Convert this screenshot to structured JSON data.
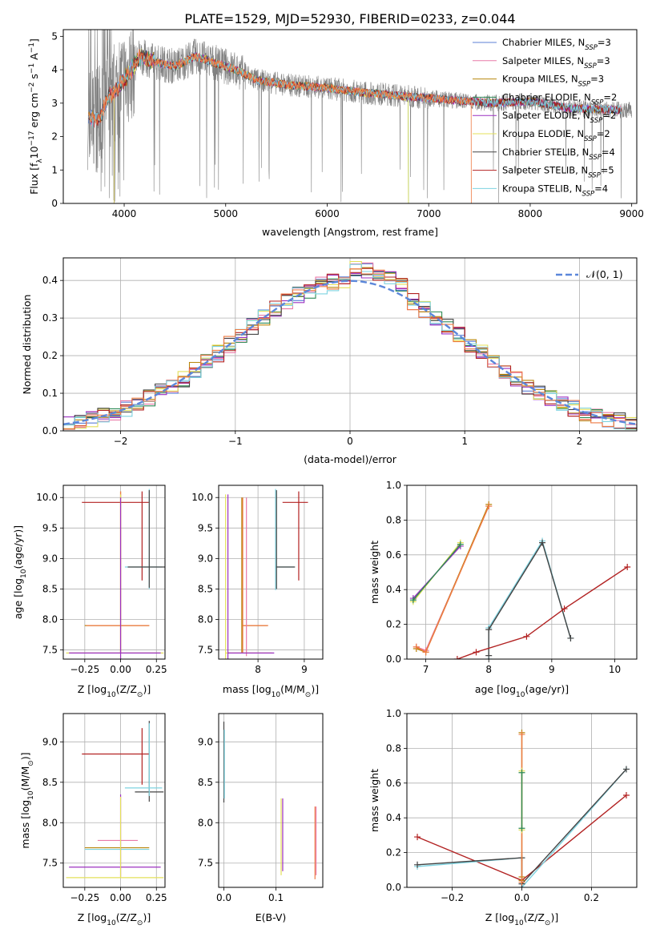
{
  "figure": {
    "title": "PLATE=1529, MJD=52930, FIBERID=0233, z=0.044"
  },
  "series_colors": {
    "Chabrier MILES": "#5b7fd6",
    "Salpeter MILES": "#e87aa8",
    "Kroupa MILES": "#b8860b",
    "Chabrier ELODIE": "#2e8b57",
    "Salpeter ELODIE": "#9b30c0",
    "Kroupa ELODIE": "#e4e05a",
    "Chabrier STELIB": "#444444",
    "Salpeter STELIB": "#b22222",
    "Kroupa STELIB": "#7ed3e0",
    "Kroupa STELIB alt": "#ee7b44",
    "Data": "#808080",
    "Gaussian": "#5b87da"
  },
  "chart_data": [
    {
      "id": "spectrum",
      "type": "line",
      "xlabel": "wavelength [Angstrom, rest frame]",
      "ylabel": "Flux [f",
      "ylabel_parts": [
        "Flux [f",
        "λ",
        "10",
        "−17",
        " erg cm",
        "−2",
        " s",
        "−1",
        " A",
        "−1",
        "]"
      ],
      "xlim": [
        3400,
        9050
      ],
      "ylim": [
        0,
        5.2
      ],
      "xticks": [
        4000,
        5000,
        6000,
        7000,
        8000,
        9000
      ],
      "yticks": [
        0,
        1,
        2,
        3,
        4,
        5
      ],
      "grid": false,
      "legend_position": "upper-right",
      "legend": [
        {
          "name": "Chabrier MILES, N",
          "sub": "SSP",
          "tail": "=3",
          "key": "Chabrier MILES"
        },
        {
          "name": "Salpeter MILES, N",
          "sub": "SSP",
          "tail": "=3",
          "key": "Salpeter MILES"
        },
        {
          "name": "Kroupa MILES, N",
          "sub": "SSP",
          "tail": "=3",
          "key": "Kroupa MILES"
        },
        {
          "name": "Chabrier ELODIE, N",
          "sub": "SSP",
          "tail": "=2",
          "key": "Chabrier ELODIE"
        },
        {
          "name": "Salpeter ELODIE, N",
          "sub": "SSP",
          "tail": "=2",
          "key": "Salpeter ELODIE"
        },
        {
          "name": "Kroupa ELODIE, N",
          "sub": "SSP",
          "tail": "=2",
          "key": "Kroupa ELODIE"
        },
        {
          "name": "Chabrier STELIB, N",
          "sub": "SSP",
          "tail": "=4",
          "key": "Chabrier STELIB"
        },
        {
          "name": "Salpeter STELIB, N",
          "sub": "SSP",
          "tail": "=5",
          "key": "Salpeter STELIB"
        },
        {
          "name": "Kroupa STELIB, N",
          "sub": "SSP",
          "tail": "=4",
          "key": "Kroupa STELIB"
        }
      ],
      "continuum": {
        "x": [
          3650,
          3750,
          3850,
          3950,
          4050,
          4150,
          4250,
          4350,
          4500,
          4700,
          4900,
          5100,
          5300,
          5600,
          6000,
          6400,
          6800,
          7200,
          7600,
          8000,
          8400,
          8800
        ],
        "y": [
          2.6,
          2.5,
          3.2,
          3.5,
          3.9,
          4.4,
          4.3,
          4.2,
          4.1,
          4.4,
          4.2,
          4.0,
          3.7,
          3.55,
          3.45,
          3.3,
          3.2,
          3.1,
          3.0,
          3.05,
          2.85,
          2.8
        ]
      },
      "data_extent": [
        3640,
        9000
      ]
    },
    {
      "id": "residuals",
      "type": "histogram",
      "xlabel": "(data-model)/error",
      "ylabel": "Normed distribution",
      "xlim": [
        -2.5,
        2.5
      ],
      "ylim": [
        0,
        0.46
      ],
      "xticks": [
        -2,
        -1,
        0,
        1,
        2
      ],
      "yticks": [
        0.0,
        0.1,
        0.2,
        0.3,
        0.4
      ],
      "grid": true,
      "legend_position": "upper-right",
      "legend": [
        {
          "name": "𝒩(0, 1)",
          "key": "Gaussian",
          "style": "dashed"
        }
      ],
      "bin_width": 0.1
    },
    {
      "id": "age_vs_Z",
      "type": "errorbar",
      "xlabel": "Z [log",
      "xlabel_parts": [
        "Z [log",
        "10",
        "(Z/Z",
        "⊙",
        ")]"
      ],
      "ylabel_parts": [
        "age  [log",
        "10",
        "(age/yr)]"
      ],
      "xlim": [
        -0.4,
        0.31
      ],
      "ylim": [
        7.35,
        10.2
      ],
      "xticks": [
        -0.25,
        0.0,
        0.25
      ],
      "xticklabels": [
        "−0.25",
        "0.00",
        "0.25"
      ],
      "yticks": [
        7.5,
        8.0,
        8.5,
        9.0,
        9.5,
        10.0
      ],
      "grid": true,
      "bars": [
        {
          "series": "Salpeter STELIB",
          "x": 0.15,
          "y": 9.92,
          "xerr": [
            0.42,
            0.05
          ],
          "yerr": [
            1.28,
            0.18
          ]
        },
        {
          "series": "Kroupa STELIB",
          "x": 0.2,
          "y": 8.86,
          "xerr": [
            0.17,
            0.09
          ],
          "yerr": [
            0.36,
            1.28
          ]
        },
        {
          "series": "Chabrier STELIB",
          "x": 0.2,
          "y": 8.86,
          "xerr": [
            0.15,
            0.11
          ],
          "yerr": [
            0.34,
            1.26
          ]
        },
        {
          "series": "Kroupa MILES",
          "x": 0.0,
          "y": 7.9,
          "xerr": [
            0.25,
            0.2
          ],
          "yerr": [
            0.45,
            2.2
          ]
        },
        {
          "series": "Kroupa STELIB alt",
          "x": 0.0,
          "y": 7.9,
          "xerr": [
            0.24,
            0.2
          ],
          "yerr": [
            0.45,
            2.2
          ]
        },
        {
          "series": "Kroupa ELODIE",
          "x": 0.0,
          "y": 7.45,
          "xerr": [
            0.38,
            0.3
          ],
          "yerr": [
            0.1,
            2.6
          ]
        },
        {
          "series": "Salpeter ELODIE",
          "x": 0.0,
          "y": 7.45,
          "xerr": [
            0.36,
            0.28
          ],
          "yerr": [
            0.1,
            2.55
          ]
        }
      ]
    },
    {
      "id": "age_vs_mass",
      "type": "errorbar",
      "xlabel_parts": [
        "mass [log",
        "10",
        "(M/M",
        "⊙",
        ")]"
      ],
      "xlim": [
        7.15,
        9.4
      ],
      "ylim": [
        7.35,
        10.2
      ],
      "xticks": [
        8,
        9
      ],
      "yticks": [
        7.5,
        8.0,
        8.5,
        9.0,
        9.5,
        10.0
      ],
      "grid": true,
      "bars": [
        {
          "series": "Salpeter STELIB",
          "x": 8.88,
          "y": 9.92,
          "xerr": [
            0.35,
            0.2
          ],
          "yerr": [
            1.28,
            0.18
          ]
        },
        {
          "series": "Kroupa STELIB",
          "x": 8.38,
          "y": 8.86,
          "xerr": [
            0.0,
            0.4
          ],
          "yerr": [
            0.38,
            1.28
          ]
        },
        {
          "series": "Chabrier STELIB",
          "x": 8.4,
          "y": 8.86,
          "xerr": [
            0.0,
            0.4
          ],
          "yerr": [
            0.36,
            1.26
          ]
        },
        {
          "series": "Kroupa MILES",
          "x": 7.65,
          "y": 7.9,
          "xerr": [
            0.0,
            0.55
          ],
          "yerr": [
            0.45,
            2.1
          ]
        },
        {
          "series": "Kroupa STELIB alt",
          "x": 7.67,
          "y": 7.9,
          "xerr": [
            0.0,
            0.55
          ],
          "yerr": [
            0.45,
            2.1
          ]
        },
        {
          "series": "Salpeter MILES",
          "x": 7.75,
          "y": 8.6,
          "xerr": [
            0.0,
            0.0
          ],
          "yerr": [
            1.2,
            1.4
          ]
        },
        {
          "series": "Kroupa ELODIE",
          "x": 7.3,
          "y": 7.45,
          "xerr": [
            0.0,
            1.0
          ],
          "yerr": [
            0.1,
            2.6
          ]
        },
        {
          "series": "Salpeter ELODIE",
          "x": 7.35,
          "y": 7.45,
          "xerr": [
            0.0,
            1.0
          ],
          "yerr": [
            0.1,
            2.6
          ]
        }
      ]
    },
    {
      "id": "weight_vs_age",
      "type": "line",
      "xlabel_parts": [
        "age  [log",
        "10",
        "(age/yr)]"
      ],
      "ylabel": "mass weight",
      "xlim": [
        6.7,
        10.35
      ],
      "ylim": [
        0,
        1
      ],
      "xticks": [
        7,
        8,
        9,
        10
      ],
      "yticks": [
        0.0,
        0.2,
        0.4,
        0.6,
        0.8,
        1.0
      ],
      "grid": true,
      "series": [
        {
          "name": "Kroupa ELODIE",
          "x": [
            6.8,
            7.55
          ],
          "y": [
            0.33,
            0.67
          ]
        },
        {
          "name": "Salpeter ELODIE",
          "x": [
            6.8,
            7.55
          ],
          "y": [
            0.35,
            0.65
          ]
        },
        {
          "name": "Chabrier ELODIE",
          "x": [
            6.8,
            7.55
          ],
          "y": [
            0.34,
            0.66
          ]
        },
        {
          "name": "Salpeter MILES",
          "x": [
            6.85,
            7.0,
            8.0
          ],
          "y": [
            0.07,
            0.05,
            0.88
          ]
        },
        {
          "name": "Kroupa MILES",
          "x": [
            6.85,
            7.0,
            8.0
          ],
          "y": [
            0.06,
            0.04,
            0.89
          ]
        },
        {
          "name": "Kroupa STELIB alt",
          "x": [
            6.85,
            7.0,
            8.0
          ],
          "y": [
            0.07,
            0.04,
            0.88
          ]
        },
        {
          "name": "Kroupa STELIB",
          "x": [
            8.0,
            8.0,
            8.85,
            9.3
          ],
          "y": [
            0.0,
            0.18,
            0.68,
            0.12
          ]
        },
        {
          "name": "Chabrier STELIB",
          "x": [
            8.0,
            8.0,
            8.85,
            9.3
          ],
          "y": [
            0.02,
            0.17,
            0.67,
            0.12
          ]
        },
        {
          "name": "Salpeter STELIB",
          "x": [
            7.5,
            7.8,
            8.6,
            9.2,
            10.2
          ],
          "y": [
            0.0,
            0.04,
            0.13,
            0.29,
            0.53
          ]
        }
      ]
    },
    {
      "id": "mass_vs_Z",
      "type": "errorbar",
      "xlabel_parts": [
        "Z [log",
        "10",
        "(Z/Z",
        "⊙",
        ")]"
      ],
      "ylabel_parts": [
        "mass [log",
        "10",
        "(M/M",
        "⊙",
        ")]"
      ],
      "xlim": [
        -0.4,
        0.31
      ],
      "ylim": [
        7.2,
        9.35
      ],
      "xticks": [
        -0.25,
        0.0,
        0.25
      ],
      "xticklabels": [
        "−0.25",
        "0.00",
        "0.25"
      ],
      "yticks": [
        7.5,
        8.0,
        8.5,
        9.0
      ],
      "grid": true,
      "bars": [
        {
          "series": "Salpeter STELIB",
          "x": 0.15,
          "y": 8.85,
          "xerr": [
            0.42,
            0.05
          ],
          "yerr": [
            0.38,
            0.32
          ]
        },
        {
          "series": "Chabrier STELIB",
          "x": 0.2,
          "y": 8.38,
          "xerr": [
            0.1,
            0.1
          ],
          "yerr": [
            0.12,
            0.88
          ]
        },
        {
          "series": "Kroupa STELIB",
          "x": 0.2,
          "y": 8.43,
          "xerr": [
            0.17,
            0.09
          ],
          "yerr": [
            0.1,
            0.8
          ]
        },
        {
          "series": "Salpeter MILES",
          "x": 0.0,
          "y": 7.78,
          "xerr": [
            0.16,
            0.12
          ],
          "yerr": [
            0.0,
            0.0
          ]
        },
        {
          "series": "Kroupa MILES",
          "x": 0.0,
          "y": 7.69,
          "xerr": [
            0.25,
            0.2
          ],
          "yerr": [
            0.0,
            0.0
          ]
        },
        {
          "series": "Kroupa STELIB",
          "x": 0.0,
          "y": 7.67,
          "xerr": [
            0.25,
            0.2
          ],
          "yerr": [
            0.0,
            0.0
          ]
        },
        {
          "series": "Salpeter ELODIE",
          "x": 0.0,
          "y": 7.45,
          "xerr": [
            0.36,
            0.28
          ],
          "yerr": [
            0.12,
            0.9
          ]
        },
        {
          "series": "Kroupa ELODIE",
          "x": 0.0,
          "y": 7.32,
          "xerr": [
            0.38,
            0.3
          ],
          "yerr": [
            0.0,
            1.0
          ]
        }
      ]
    },
    {
      "id": "mass_vs_EBV",
      "type": "errorbar",
      "xlabel": "E(B-V)",
      "xlim": [
        -0.01,
        0.19
      ],
      "ylim": [
        7.2,
        9.35
      ],
      "xticks": [
        0.0,
        0.1
      ],
      "xticklabels": [
        "0.0",
        "0.1"
      ],
      "yticks": [
        7.5,
        8.0,
        8.5,
        9.0
      ],
      "grid": true,
      "bars": [
        {
          "series": "Chabrier STELIB",
          "x": 0.0,
          "y": 8.75,
          "xerr": [
            0.0,
            0.0
          ],
          "yerr": [
            0.5,
            0.5
          ]
        },
        {
          "series": "Kroupa STELIB",
          "x": 0.001,
          "y": 8.7,
          "xerr": [
            0.0,
            0.0
          ],
          "yerr": [
            0.4,
            0.45
          ]
        },
        {
          "series": "Kroupa ELODIE",
          "x": 0.11,
          "y": 7.8,
          "xerr": [
            0.0,
            0.0
          ],
          "yerr": [
            0.45,
            0.5
          ]
        },
        {
          "series": "Salpeter ELODIE",
          "x": 0.113,
          "y": 7.8,
          "xerr": [
            0.0,
            0.0
          ],
          "yerr": [
            0.4,
            0.5
          ]
        },
        {
          "series": "Kroupa STELIB alt",
          "x": 0.175,
          "y": 7.8,
          "xerr": [
            0.0,
            0.0
          ],
          "yerr": [
            0.5,
            0.4
          ]
        },
        {
          "series": "Salpeter MILES",
          "x": 0.177,
          "y": 7.75,
          "xerr": [
            0.0,
            0.0
          ],
          "yerr": [
            0.4,
            0.45
          ]
        }
      ]
    },
    {
      "id": "weight_vs_Z",
      "type": "line",
      "xlabel_parts": [
        "Z [log",
        "10",
        "(Z/Z",
        "⊙",
        ")]"
      ],
      "ylabel": "mass weight",
      "xlim": [
        -0.33,
        0.33
      ],
      "ylim": [
        0,
        1
      ],
      "xticks": [
        -0.2,
        0.0,
        0.2
      ],
      "xticklabels": [
        "−0.2",
        "0.0",
        "0.2"
      ],
      "yticks": [
        0.0,
        0.2,
        0.4,
        0.6,
        0.8,
        1.0
      ],
      "grid": true,
      "series": [
        {
          "name": "Salpeter STELIB",
          "x": [
            -0.3,
            0.0,
            0.3
          ],
          "y": [
            0.29,
            0.04,
            0.53
          ]
        },
        {
          "name": "Kroupa STELIB",
          "x": [
            -0.3,
            0.0,
            0.0,
            0.3
          ],
          "y": [
            0.12,
            0.17,
            0.0,
            0.68
          ]
        },
        {
          "name": "Chabrier STELIB",
          "x": [
            -0.3,
            0.0,
            0.0,
            0.3
          ],
          "y": [
            0.13,
            0.17,
            0.02,
            0.68
          ]
        },
        {
          "name": "Kroupa MILES",
          "x": [
            0.0,
            0.0,
            0.0
          ],
          "y": [
            0.04,
            0.89,
            0.06
          ]
        },
        {
          "name": "Kroupa STELIB alt",
          "x": [
            0.0,
            0.0
          ],
          "y": [
            0.03,
            0.88
          ]
        },
        {
          "name": "Kroupa ELODIE",
          "x": [
            0.0,
            0.0
          ],
          "y": [
            0.33,
            0.67
          ]
        },
        {
          "name": "Chabrier ELODIE",
          "x": [
            0.0,
            0.0
          ],
          "y": [
            0.34,
            0.66
          ]
        }
      ]
    }
  ]
}
